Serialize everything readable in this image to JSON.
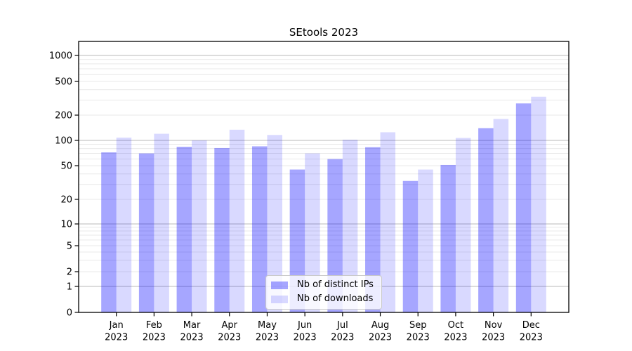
{
  "chart_data": {
    "type": "bar",
    "title": "SEtools 2023",
    "categories": [
      "Jan 2023",
      "Feb 2023",
      "Mar 2023",
      "Apr 2023",
      "May 2023",
      "Jun 2023",
      "Jul 2023",
      "Aug 2023",
      "Sep 2023",
      "Oct 2023",
      "Nov 2023",
      "Dec 2023"
    ],
    "series": [
      {
        "name": "Nb of distinct IPs",
        "color": "#0000ff",
        "alpha": 0.35,
        "apparent_color": "#a8a8f6",
        "values": [
          72,
          70,
          84,
          81,
          85,
          45,
          60,
          83,
          33,
          51,
          140,
          275
        ]
      },
      {
        "name": "Nb of downloads",
        "color": "#0000ff",
        "alpha": 0.15,
        "apparent_color": "#d9d9fb",
        "values": [
          108,
          120,
          100,
          134,
          116,
          70,
          102,
          125,
          45,
          107,
          180,
          330
        ]
      }
    ],
    "xlabel": "",
    "ylabel": "",
    "yscale": "symlog",
    "yticks": [
      0,
      1,
      2,
      5,
      10,
      20,
      50,
      100,
      200,
      500,
      1000
    ],
    "ylim": [
      0,
      1450
    ],
    "grid": true,
    "legend_position": "lower center"
  }
}
